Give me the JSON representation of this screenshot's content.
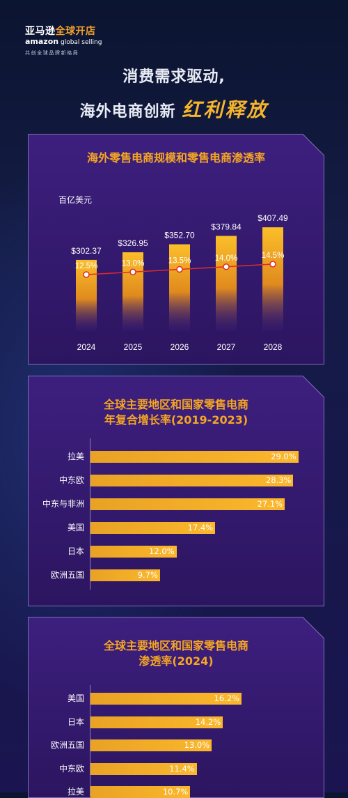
{
  "logo": {
    "line1_white": "亚马逊",
    "line1_orange": "全球开店",
    "line2_brand": "amazon",
    "line2_rest": "global selling",
    "tagline": "共创全球品牌新格局"
  },
  "headline": {
    "line1": "消费需求驱动,",
    "line2_plain": "海外电商创新",
    "line2_highlight": "红利释放"
  },
  "colors": {
    "accent": "#f5a623",
    "bar": "#fbb72c",
    "line": "#e02b2b",
    "panel": "#3a1c78"
  },
  "chart_data": [
    {
      "type": "bar",
      "title": "海外零售电商规模和零售电商渗透率",
      "unit_label": "百亿美元",
      "categories": [
        "2024",
        "2025",
        "2026",
        "2027",
        "2028"
      ],
      "series": [
        {
          "values": [
            302.37,
            326.95,
            352.7,
            379.84,
            407.49
          ],
          "labels": [
            "$302.37",
            "$326.95",
            "$352.70",
            "$379.84",
            "$407.49"
          ]
        },
        {
          "type": "line",
          "values": [
            12.5,
            13.0,
            13.5,
            14.0,
            14.5
          ],
          "labels": [
            "12.5%",
            "13.0%",
            "13.5%",
            "14.0%",
            "14.5%"
          ]
        }
      ]
    },
    {
      "type": "bar",
      "orientation": "horizontal",
      "title_line1": "全球主要地区和国家零售电商",
      "title_line2": "年复合增长率(2019-2023)",
      "categories": [
        "拉美",
        "中东欧",
        "中东与非洲",
        "美国",
        "日本",
        "欧洲五国"
      ],
      "values": [
        29.0,
        28.3,
        27.1,
        17.4,
        12.0,
        9.7
      ],
      "labels": [
        "29.0%",
        "28.3%",
        "27.1%",
        "17.4%",
        "12.0%",
        "9.7%"
      ]
    },
    {
      "type": "bar",
      "orientation": "horizontal",
      "title_line1": "全球主要地区和国家零售电商",
      "title_line2": "渗透率(2024)",
      "categories": [
        "美国",
        "日本",
        "欧洲五国",
        "中东欧",
        "拉美"
      ],
      "values": [
        16.2,
        14.2,
        13.0,
        11.4,
        10.7
      ],
      "labels": [
        "16.2%",
        "14.2%",
        "13.0%",
        "11.4%",
        "10.7%"
      ]
    }
  ]
}
